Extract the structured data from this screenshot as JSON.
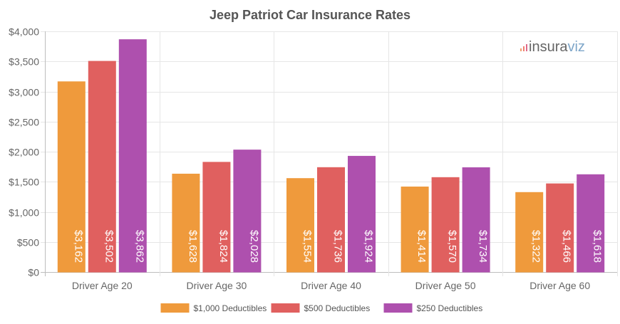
{
  "chart_data": {
    "type": "bar",
    "title": "Jeep Patriot Car Insurance Rates",
    "categories": [
      "Driver Age 20",
      "Driver Age 30",
      "Driver Age 40",
      "Driver Age 50",
      "Driver Age 60"
    ],
    "series": [
      {
        "name": "$1,000 Deductibles",
        "color": "#ef9a3c",
        "values": [
          3162,
          1628,
          1554,
          1414,
          1322
        ],
        "labels": [
          "$3,162",
          "$1,628",
          "$1,554",
          "$1,414",
          "$1,322"
        ]
      },
      {
        "name": "$500 Deductibles",
        "color": "#e0605f",
        "values": [
          3502,
          1824,
          1736,
          1570,
          1466
        ],
        "labels": [
          "$3,502",
          "$1,824",
          "$1,736",
          "$1,570",
          "$1,466"
        ]
      },
      {
        "name": "$250 Deductibles",
        "color": "#ae50ae",
        "values": [
          3862,
          2028,
          1924,
          1734,
          1618
        ],
        "labels": [
          "$3,862",
          "$2,028",
          "$1,924",
          "$1,734",
          "$1,618"
        ]
      }
    ],
    "ylim": [
      0,
      4000
    ],
    "yticks": [
      0,
      500,
      1000,
      1500,
      2000,
      2500,
      3000,
      3500,
      4000
    ],
    "ytick_labels": [
      "$0",
      "$500",
      "$1,000",
      "$1,500",
      "$2,000",
      "$2,500",
      "$3,000",
      "$3,500",
      "$4,000"
    ],
    "xlabel": "",
    "ylabel": "",
    "grid": true,
    "legend_position": "bottom"
  },
  "watermark": {
    "text_left": "insura",
    "text_right": "viz",
    "color_left": "#666666",
    "color_right": "#7ea6c9",
    "icon": "bar-chart-icon"
  }
}
